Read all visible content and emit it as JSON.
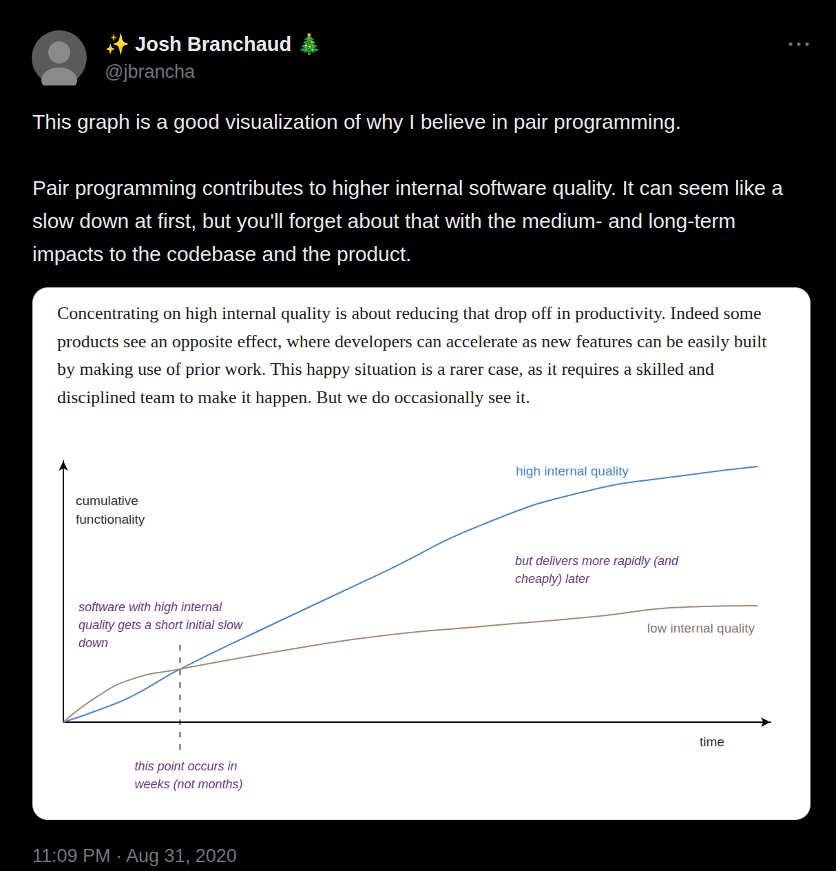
{
  "post": {
    "author": "✨ Josh Branchaud 🎄",
    "handle": "@jbrancha",
    "text": [
      "This graph is a good visualization of why I believe in pair programming.",
      "Pair programming contributes to higher internal software quality. It can seem like a slow down at first, but you'll forget about that with the medium- and long-term impacts to the codebase and the product."
    ],
    "timestamp": "11:09 PM · Aug 31, 2020"
  },
  "card": {
    "text": "Concentrating on high internal quality is about reducing that drop off in productivity. Indeed some products see an opposite effect, where developers can accelerate as new features can be easily built by making use of prior work. This happy situation is a rarer case, as it requires a skilled and disciplined team to make it happen. But we do occasionally see it."
  },
  "chart_data": {
    "type": "line",
    "x_label": "time",
    "y_label": "cumulative functionality",
    "xlim": [
      0,
      100
    ],
    "ylim": [
      0,
      100
    ],
    "tick_labels": false,
    "grid": false,
    "x": [
      0,
      4.8,
      9.6,
      16.5,
      30,
      44.7,
      59.3,
      73.9,
      88.5,
      98.2
    ],
    "series": [
      {
        "name": "high internal quality",
        "color": "#4a86c5",
        "values": [
          0,
          4.5,
          9.8,
          20.3,
          38,
          56.7,
          75.7,
          88.4,
          94.7,
          97.9
        ]
      },
      {
        "name": "low internal quality",
        "color": "#a88a75",
        "values": [
          0,
          9.8,
          16.4,
          20.3,
          26.9,
          33,
          36.7,
          40.1,
          44.1,
          44.6
        ]
      }
    ],
    "annotations": [
      "software with high internal quality gets a short initial slow down",
      "but delivers more rapidly (and cheaply) later"
    ],
    "crossover": {
      "x": 16.5,
      "y": 20.3,
      "label": "this point occurs in weeks (not months)"
    }
  }
}
